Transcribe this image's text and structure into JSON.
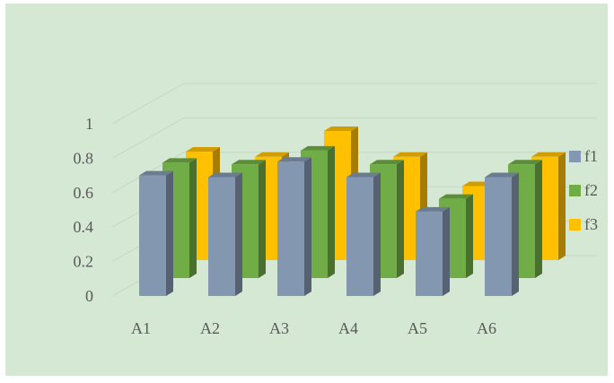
{
  "chart_data": {
    "type": "bar",
    "subtype": "3d-clustered-column",
    "categories": [
      "A1",
      "A2",
      "A3",
      "A4",
      "A5",
      "A6"
    ],
    "series": [
      {
        "name": "f1",
        "values": [
          0.7,
          0.69,
          0.78,
          0.69,
          0.49,
          0.69
        ],
        "color": "#8497B0"
      },
      {
        "name": "f2",
        "values": [
          0.67,
          0.66,
          0.74,
          0.66,
          0.46,
          0.66
        ],
        "color": "#70AD47"
      },
      {
        "name": "f3",
        "values": [
          0.63,
          0.6,
          0.75,
          0.6,
          0.43,
          0.6
        ],
        "color": "#FFC000"
      }
    ],
    "y_ticks": [
      "0",
      "0.2",
      "0.4",
      "0.6",
      "0.8",
      "1"
    ],
    "ylim": [
      0,
      1
    ],
    "grid": true,
    "legend": "right",
    "title": "",
    "xlabel": "",
    "ylabel": ""
  },
  "colors": {
    "background": "#D5E8D4",
    "gridline": "#C3D9C2",
    "text": "#595959"
  }
}
